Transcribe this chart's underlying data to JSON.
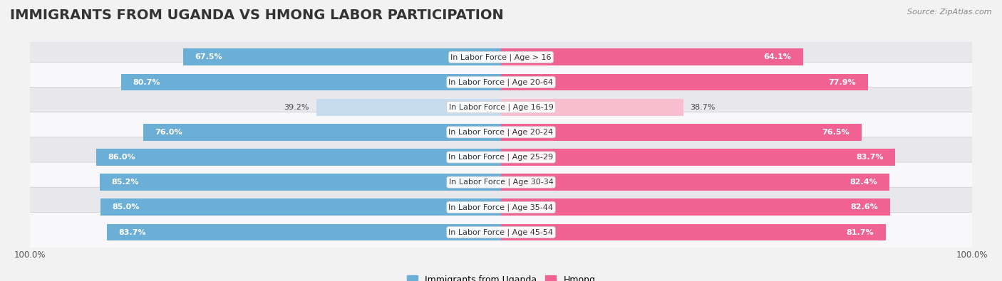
{
  "title": "IMMIGRANTS FROM UGANDA VS HMONG LABOR PARTICIPATION",
  "source": "Source: ZipAtlas.com",
  "categories": [
    "In Labor Force | Age > 16",
    "In Labor Force | Age 20-64",
    "In Labor Force | Age 16-19",
    "In Labor Force | Age 20-24",
    "In Labor Force | Age 25-29",
    "In Labor Force | Age 30-34",
    "In Labor Force | Age 35-44",
    "In Labor Force | Age 45-54"
  ],
  "uganda_values": [
    67.5,
    80.7,
    39.2,
    76.0,
    86.0,
    85.2,
    85.0,
    83.7
  ],
  "hmong_values": [
    64.1,
    77.9,
    38.7,
    76.5,
    83.7,
    82.4,
    82.6,
    81.7
  ],
  "uganda_color": "#6BAED6",
  "hmong_color": "#F06292",
  "uganda_color_light": "#C6DCEE",
  "hmong_color_light": "#F9BDD0",
  "background_color": "#f2f2f2",
  "row_bg_even": "#e8e8ec",
  "row_bg_odd": "#f8f8fa",
  "max_value": 100.0,
  "legend_labels": [
    "Immigrants from Uganda",
    "Hmong"
  ],
  "title_fontsize": 14,
  "label_fontsize": 8,
  "value_fontsize": 8
}
